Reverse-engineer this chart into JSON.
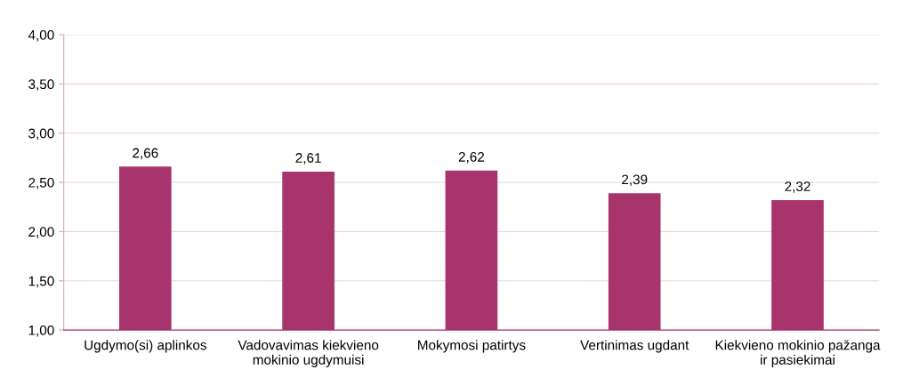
{
  "chart_data": {
    "type": "bar",
    "categories": [
      "Ugdymo(si) aplinkos",
      "Vadovavimas kiekvieno\nmokinio ugdymuisi",
      "Mokymosi patirtys",
      "Vertinimas ugdant",
      "Kiekvieno mokinio pažanga\nir pasiekimai"
    ],
    "values": [
      2.66,
      2.61,
      2.62,
      2.39,
      2.32
    ],
    "value_labels": [
      "2,66",
      "2,61",
      "2,62",
      "2,39",
      "2,32"
    ],
    "color": "#a8346c",
    "ylim": [
      1,
      4
    ],
    "yticks": [
      {
        "value": 1,
        "label": "1,00"
      },
      {
        "value": 1.5,
        "label": "1,50"
      },
      {
        "value": 2,
        "label": "2,00"
      },
      {
        "value": 2.5,
        "label": "2,50"
      },
      {
        "value": 3,
        "label": "3,00"
      },
      {
        "value": 3.5,
        "label": "3,50"
      },
      {
        "value": 4,
        "label": "4,00"
      }
    ],
    "grid": "y"
  }
}
